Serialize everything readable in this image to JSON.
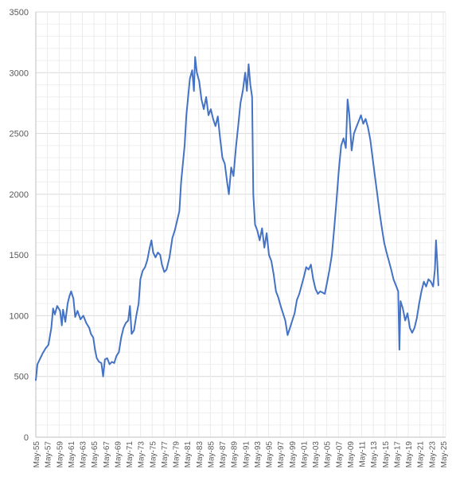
{
  "chart_data": {
    "type": "line",
    "title": "",
    "xlabel": "",
    "ylabel": "",
    "xlim": [
      1955.33,
      2025.75
    ],
    "ylim": [
      0,
      3500
    ],
    "grid": true,
    "legend": "none",
    "colors": {
      "line": "#4472C4",
      "grid": "#D9D9D9",
      "axis": "#BFBFBF"
    },
    "y_ticks": [
      "0",
      "500",
      "1000",
      "1500",
      "2000",
      "2500",
      "3000",
      "3500"
    ],
    "x_ticks": [
      {
        "label": "May-55",
        "x": 1955.33
      },
      {
        "label": "May-57",
        "x": 1957.33
      },
      {
        "label": "May-59",
        "x": 1959.33
      },
      {
        "label": "May-61",
        "x": 1961.33
      },
      {
        "label": "May-63",
        "x": 1963.33
      },
      {
        "label": "May-65",
        "x": 1965.33
      },
      {
        "label": "May-67",
        "x": 1967.33
      },
      {
        "label": "May-69",
        "x": 1969.33
      },
      {
        "label": "May-71",
        "x": 1971.33
      },
      {
        "label": "May-73",
        "x": 1973.33
      },
      {
        "label": "May-75",
        "x": 1975.33
      },
      {
        "label": "May-77",
        "x": 1977.33
      },
      {
        "label": "May-79",
        "x": 1979.33
      },
      {
        "label": "May-81",
        "x": 1981.33
      },
      {
        "label": "May-83",
        "x": 1983.33
      },
      {
        "label": "May-85",
        "x": 1985.33
      },
      {
        "label": "May-87",
        "x": 1987.33
      },
      {
        "label": "May-89",
        "x": 1989.33
      },
      {
        "label": "May-91",
        "x": 1991.33
      },
      {
        "label": "May-93",
        "x": 1993.33
      },
      {
        "label": "May-95",
        "x": 1995.33
      },
      {
        "label": "May-97",
        "x": 1997.33
      },
      {
        "label": "May-99",
        "x": 1999.33
      },
      {
        "label": "May-01",
        "x": 2001.33
      },
      {
        "label": "May-03",
        "x": 2003.33
      },
      {
        "label": "May-05",
        "x": 2005.33
      },
      {
        "label": "May-07",
        "x": 2007.33
      },
      {
        "label": "May-09",
        "x": 2009.33
      },
      {
        "label": "May-11",
        "x": 2011.33
      },
      {
        "label": "May-13",
        "x": 2013.33
      },
      {
        "label": "May-15",
        "x": 2015.33
      },
      {
        "label": "May-17",
        "x": 2017.33
      },
      {
        "label": "May-19",
        "x": 2019.33
      },
      {
        "label": "May-21",
        "x": 2021.33
      },
      {
        "label": "May-23",
        "x": 2023.33
      },
      {
        "label": "May-25",
        "x": 2025.33
      }
    ],
    "series": [
      {
        "points": [
          [
            1955.33,
            470
          ],
          [
            1955.6,
            600
          ],
          [
            1956.0,
            640
          ],
          [
            1956.5,
            690
          ],
          [
            1957.0,
            730
          ],
          [
            1957.5,
            760
          ],
          [
            1958.0,
            900
          ],
          [
            1958.3,
            1060
          ],
          [
            1958.6,
            1010
          ],
          [
            1959.0,
            1080
          ],
          [
            1959.5,
            1040
          ],
          [
            1959.8,
            920
          ],
          [
            1960.0,
            1050
          ],
          [
            1960.4,
            950
          ],
          [
            1960.8,
            1100
          ],
          [
            1961.1,
            1160
          ],
          [
            1961.4,
            1200
          ],
          [
            1961.8,
            1140
          ],
          [
            1962.1,
            990
          ],
          [
            1962.5,
            1040
          ],
          [
            1963.0,
            970
          ],
          [
            1963.5,
            1000
          ],
          [
            1964.0,
            940
          ],
          [
            1964.5,
            900
          ],
          [
            1964.8,
            850
          ],
          [
            1965.2,
            820
          ],
          [
            1965.5,
            720
          ],
          [
            1965.8,
            650
          ],
          [
            1966.2,
            620
          ],
          [
            1966.6,
            610
          ],
          [
            1966.9,
            500
          ],
          [
            1967.2,
            640
          ],
          [
            1967.6,
            650
          ],
          [
            1968.0,
            600
          ],
          [
            1968.4,
            620
          ],
          [
            1968.8,
            610
          ],
          [
            1969.2,
            670
          ],
          [
            1969.6,
            700
          ],
          [
            1970.0,
            820
          ],
          [
            1970.4,
            900
          ],
          [
            1970.8,
            940
          ],
          [
            1971.2,
            960
          ],
          [
            1971.5,
            1080
          ],
          [
            1971.8,
            850
          ],
          [
            1972.2,
            880
          ],
          [
            1972.6,
            1000
          ],
          [
            1973.0,
            1100
          ],
          [
            1973.3,
            1300
          ],
          [
            1973.7,
            1370
          ],
          [
            1974.1,
            1400
          ],
          [
            1974.5,
            1460
          ],
          [
            1974.9,
            1560
          ],
          [
            1975.2,
            1620
          ],
          [
            1975.5,
            1520
          ],
          [
            1975.9,
            1480
          ],
          [
            1976.3,
            1520
          ],
          [
            1976.7,
            1500
          ],
          [
            1977.0,
            1420
          ],
          [
            1977.4,
            1360
          ],
          [
            1977.8,
            1380
          ],
          [
            1978.3,
            1480
          ],
          [
            1978.8,
            1640
          ],
          [
            1979.2,
            1700
          ],
          [
            1979.6,
            1780
          ],
          [
            1980.0,
            1860
          ],
          [
            1980.3,
            2100
          ],
          [
            1980.6,
            2250
          ],
          [
            1980.9,
            2400
          ],
          [
            1981.2,
            2650
          ],
          [
            1981.5,
            2800
          ],
          [
            1981.8,
            2950
          ],
          [
            1982.2,
            3020
          ],
          [
            1982.5,
            2850
          ],
          [
            1982.7,
            3130
          ],
          [
            1983.0,
            3000
          ],
          [
            1983.4,
            2930
          ],
          [
            1983.8,
            2780
          ],
          [
            1984.2,
            2700
          ],
          [
            1984.6,
            2800
          ],
          [
            1985.0,
            2650
          ],
          [
            1985.4,
            2700
          ],
          [
            1985.8,
            2620
          ],
          [
            1986.2,
            2560
          ],
          [
            1986.6,
            2640
          ],
          [
            1987.0,
            2460
          ],
          [
            1987.4,
            2300
          ],
          [
            1987.8,
            2250
          ],
          [
            1988.2,
            2100
          ],
          [
            1988.5,
            2000
          ],
          [
            1988.9,
            2220
          ],
          [
            1989.3,
            2150
          ],
          [
            1989.7,
            2380
          ],
          [
            1990.1,
            2560
          ],
          [
            1990.5,
            2750
          ],
          [
            1990.9,
            2850
          ],
          [
            1991.3,
            3000
          ],
          [
            1991.6,
            2850
          ],
          [
            1991.9,
            3070
          ],
          [
            1992.2,
            2900
          ],
          [
            1992.5,
            2800
          ],
          [
            1992.7,
            2000
          ],
          [
            1993.0,
            1750
          ],
          [
            1993.4,
            1700
          ],
          [
            1993.8,
            1620
          ],
          [
            1994.2,
            1720
          ],
          [
            1994.6,
            1560
          ],
          [
            1995.0,
            1680
          ],
          [
            1995.4,
            1500
          ],
          [
            1995.8,
            1450
          ],
          [
            1996.2,
            1340
          ],
          [
            1996.6,
            1200
          ],
          [
            1997.0,
            1150
          ],
          [
            1997.4,
            1080
          ],
          [
            1997.8,
            1020
          ],
          [
            1998.2,
            960
          ],
          [
            1998.6,
            840
          ],
          [
            1999.0,
            900
          ],
          [
            1999.4,
            960
          ],
          [
            1999.8,
            1020
          ],
          [
            2000.2,
            1130
          ],
          [
            2000.6,
            1180
          ],
          [
            2001.0,
            1250
          ],
          [
            2001.4,
            1320
          ],
          [
            2001.8,
            1400
          ],
          [
            2002.2,
            1380
          ],
          [
            2002.6,
            1420
          ],
          [
            2003.0,
            1300
          ],
          [
            2003.4,
            1220
          ],
          [
            2003.8,
            1180
          ],
          [
            2004.2,
            1200
          ],
          [
            2004.6,
            1190
          ],
          [
            2005.0,
            1180
          ],
          [
            2005.4,
            1280
          ],
          [
            2005.8,
            1380
          ],
          [
            2006.2,
            1500
          ],
          [
            2006.6,
            1720
          ],
          [
            2007.0,
            1950
          ],
          [
            2007.4,
            2200
          ],
          [
            2007.8,
            2400
          ],
          [
            2008.2,
            2460
          ],
          [
            2008.6,
            2380
          ],
          [
            2008.9,
            2780
          ],
          [
            2009.2,
            2650
          ],
          [
            2009.6,
            2360
          ],
          [
            2010.0,
            2500
          ],
          [
            2010.4,
            2550
          ],
          [
            2010.8,
            2600
          ],
          [
            2011.2,
            2650
          ],
          [
            2011.6,
            2580
          ],
          [
            2012.0,
            2620
          ],
          [
            2012.4,
            2550
          ],
          [
            2012.8,
            2450
          ],
          [
            2013.2,
            2300
          ],
          [
            2013.6,
            2150
          ],
          [
            2014.0,
            2000
          ],
          [
            2014.4,
            1850
          ],
          [
            2014.8,
            1720
          ],
          [
            2015.2,
            1600
          ],
          [
            2015.6,
            1520
          ],
          [
            2016.0,
            1450
          ],
          [
            2016.4,
            1380
          ],
          [
            2016.8,
            1300
          ],
          [
            2017.2,
            1250
          ],
          [
            2017.6,
            1200
          ],
          [
            2017.8,
            720
          ],
          [
            2018.0,
            1120
          ],
          [
            2018.4,
            1060
          ],
          [
            2018.8,
            960
          ],
          [
            2019.2,
            1020
          ],
          [
            2019.6,
            900
          ],
          [
            2020.0,
            860
          ],
          [
            2020.4,
            900
          ],
          [
            2020.8,
            980
          ],
          [
            2021.2,
            1100
          ],
          [
            2021.6,
            1200
          ],
          [
            2022.0,
            1280
          ],
          [
            2022.4,
            1240
          ],
          [
            2022.8,
            1300
          ],
          [
            2023.2,
            1280
          ],
          [
            2023.6,
            1240
          ],
          [
            2023.9,
            1380
          ],
          [
            2024.1,
            1620
          ],
          [
            2024.3,
            1450
          ],
          [
            2024.5,
            1250
          ]
        ]
      }
    ]
  }
}
